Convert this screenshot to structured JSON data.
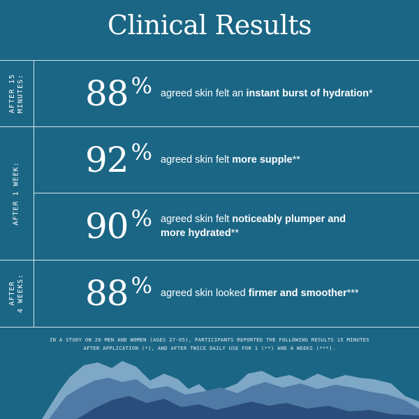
{
  "title": "Clinical Results",
  "rows": [
    {
      "period": "AFTER 15\nMINUTES:",
      "percent": "88",
      "symbol": "%",
      "text": "agreed skin felt an ",
      "highlight": "instant burst of hydration",
      "marker": "*"
    },
    {
      "period": "AFTER 1 WEEK:",
      "percent": "92",
      "symbol": "%",
      "text": "agreed skin felt ",
      "highlight": "more supple",
      "marker": "**"
    },
    {
      "percent": "90",
      "symbol": "%",
      "text": "agreed skin felt ",
      "highlight": "noticeably plumper and more hydrated",
      "marker": "**"
    },
    {
      "period": "AFTER\n4 WEEKS:",
      "percent": "88",
      "symbol": "%",
      "text": "agreed skin looked ",
      "highlight": "firmer and smoother",
      "marker": "***"
    }
  ],
  "footnote": "IN A STUDY ON 26 MEN AND WOMEN (AGES 27-65), PARTICIPANTS REPORTED THE FOLLOWING RESULTS 15 MINUTES AFTER APPLICATION (*), AND AFTER TWICE DAILY USE FOR 1 (**) AND 4 WEEKS (***).",
  "colors": {
    "background": "#1b6685",
    "text": "#ffffff",
    "mountain_light": "#7fa7c6",
    "mountain_mid": "#4f7aa5",
    "mountain_dark": "#2a4e7c"
  }
}
